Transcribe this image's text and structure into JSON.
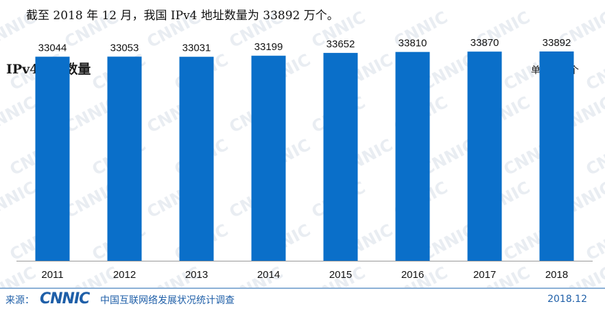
{
  "intro_text": "截至 2018 年 12 月，我国 IPv4 地址数量为 33892 万个。",
  "chart_data": {
    "type": "bar",
    "title": "IPv4地址数量",
    "unit_label": "单位：万个",
    "categories": [
      "2011",
      "2012",
      "2013",
      "2014",
      "2015",
      "2016",
      "2017",
      "2018"
    ],
    "values": [
      33044,
      33053,
      33031,
      33199,
      33652,
      33810,
      33870,
      33892
    ],
    "xlabel": "",
    "ylabel": "",
    "ylim": [
      0,
      40000
    ],
    "grid": false,
    "legend": "none",
    "bar_color": "#0a6fc9"
  },
  "footer": {
    "source_label": "来源：",
    "logo_text": "CNNIC",
    "org": "中国互联网络发展状况统计调查",
    "date": "2018.12"
  },
  "watermark_text": "CNNIC",
  "colors": {
    "bar": "#0a6fc9",
    "footer_text": "#1f5fa8",
    "footer_rule": "#8bb0d6",
    "axis": "#999999"
  }
}
